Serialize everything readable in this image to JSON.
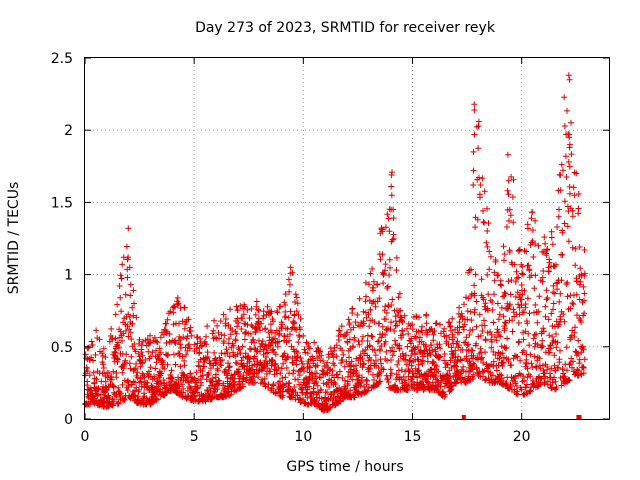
{
  "chart_data": {
    "type": "scatter",
    "title": "Day 273 of 2023, SRMTID for receiver reyk",
    "xlabel": "GPS time / hours",
    "ylabel": "SRMTID / TECUs",
    "xlim": [
      0,
      24
    ],
    "ylim": [
      0,
      2.5
    ],
    "x_ticks": [
      0,
      5,
      10,
      15,
      20
    ],
    "y_ticks": [
      0,
      0.5,
      1,
      1.5,
      2,
      2.5
    ],
    "x_tick_labels": [
      "0",
      "5",
      "10",
      "15",
      "20"
    ],
    "y_tick_labels": [
      "0",
      "0.5",
      "1",
      "1.5",
      "2",
      "2.5"
    ],
    "grid": true,
    "marker": "+",
    "color": "#e00000",
    "envelope": {
      "description": "Approximate per-hour typical range of plotted SRMTID values",
      "x": [
        0,
        0.5,
        1,
        1.5,
        2,
        2.5,
        3,
        3.5,
        4,
        4.5,
        5,
        5.5,
        6,
        6.5,
        7,
        7.5,
        8,
        8.5,
        9,
        9.5,
        10,
        10.5,
        11,
        11.5,
        12,
        12.5,
        13,
        13.5,
        14,
        14.5,
        15,
        15.5,
        16,
        16.5,
        17,
        17.5,
        18,
        18.5,
        19,
        19.5,
        20,
        20.5,
        21,
        21.5,
        22,
        22.5,
        23
      ],
      "low": [
        0.1,
        0.1,
        0.08,
        0.1,
        0.15,
        0.1,
        0.1,
        0.15,
        0.2,
        0.15,
        0.12,
        0.12,
        0.15,
        0.15,
        0.2,
        0.25,
        0.25,
        0.2,
        0.15,
        0.15,
        0.1,
        0.1,
        0.05,
        0.1,
        0.15,
        0.15,
        0.2,
        0.25,
        0.2,
        0.2,
        0.2,
        0.2,
        0.2,
        0.15,
        0.25,
        0.25,
        0.3,
        0.25,
        0.25,
        0.2,
        0.15,
        0.2,
        0.25,
        0.2,
        0.25,
        0.3,
        0.3
      ],
      "high": [
        0.45,
        0.65,
        0.45,
        0.95,
        1.3,
        0.55,
        0.6,
        0.6,
        0.85,
        0.85,
        0.55,
        0.65,
        0.7,
        0.75,
        0.8,
        0.8,
        0.85,
        0.75,
        0.8,
        1.05,
        0.6,
        0.55,
        0.4,
        0.6,
        0.7,
        0.85,
        1.0,
        1.3,
        1.7,
        0.75,
        0.7,
        0.75,
        0.7,
        0.7,
        0.7,
        1.0,
        2.2,
        1.35,
        1.1,
        1.8,
        1.3,
        1.45,
        1.3,
        1.3,
        2.4,
        1.8,
        1.0
      ]
    },
    "spikes": [
      {
        "x": 2.0,
        "values": [
          1.32,
          1.12,
          1.05,
          0.98
        ]
      },
      {
        "x": 9.4,
        "values": [
          1.05,
          1.01,
          0.93,
          0.88
        ]
      },
      {
        "x": 14.0,
        "values": [
          1.71,
          1.69,
          1.61,
          1.55,
          1.45
        ]
      },
      {
        "x": 17.8,
        "values": [
          2.18,
          2.14,
          1.97,
          1.85,
          1.72
        ]
      },
      {
        "x": 19.4,
        "values": [
          1.83,
          1.65,
          1.58,
          1.45
        ]
      },
      {
        "x": 22.2,
        "values": [
          2.38,
          2.35,
          1.95,
          1.9,
          1.88,
          1.78
        ]
      }
    ],
    "zero_points_x": [
      17.35,
      22.6,
      22.65
    ]
  }
}
